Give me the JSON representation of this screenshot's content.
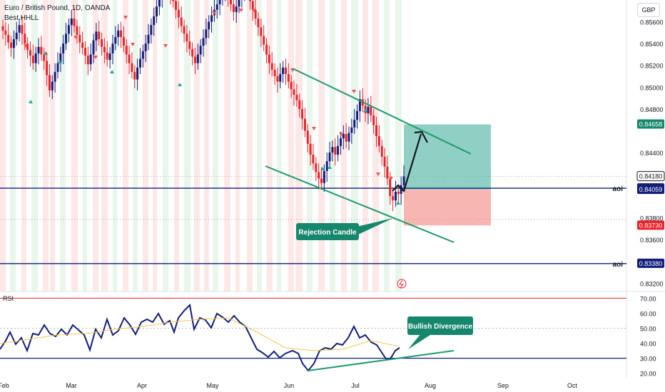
{
  "header": {
    "title": "Euro / British Pound, 1D, OANDA",
    "indicator": "Best HHLL",
    "currency_button": "GBP"
  },
  "rsi_panel": {
    "label": "RSI"
  },
  "annotations": {
    "aoi_label": "aoi",
    "rejection_callout": "Rejection Candle",
    "divergence_callout": "Bullish Divergence"
  },
  "colors": {
    "up": "#131d7a",
    "down": "#e8232b",
    "stop_zone": "#f7a9a6",
    "target_zone": "#7dc7ba",
    "channel": "#1f9c6b",
    "callout": "#16876c",
    "rsi_line": "#131d7a",
    "rsi_ma": "#f3c84b",
    "level_line": "#131d7a",
    "rsi_top": "#e8232b"
  },
  "chart_data": [
    {
      "type": "candlestick",
      "title": "Euro / British Pound, 1D, OANDA",
      "x_ticks": [
        "Feb",
        "Mar",
        "Apr",
        "May",
        "Jun",
        "Jul",
        "Aug",
        "Sep",
        "Oct"
      ],
      "y_ticks": [
        "0.85600",
        "0.85400",
        "0.85200",
        "0.85000",
        "0.84800",
        "0.84400",
        "0.83800",
        "0.83600",
        "0.83200"
      ],
      "ylim": [
        0.8315,
        0.858
      ],
      "price_labels": [
        {
          "value": "0.84658",
          "kind": "target"
        },
        {
          "value": "0.84180",
          "kind": "current"
        },
        {
          "value": "0.84072",
          "kind": "aoi"
        },
        {
          "value": "0.84059",
          "kind": "entry"
        },
        {
          "value": "0.83730",
          "kind": "stop"
        },
        {
          "value": "0.83380",
          "kind": "aoi"
        }
      ],
      "aoi_levels": [
        0.84072,
        0.8338
      ],
      "trade_zone": {
        "entry": 0.84059,
        "target": 0.84658,
        "stop": 0.8373
      },
      "close_series": [
        0.8552,
        0.8548,
        0.8541,
        0.8536,
        0.8544,
        0.855,
        0.8557,
        0.8549,
        0.854,
        0.8534,
        0.8529,
        0.8522,
        0.8531,
        0.8537,
        0.853,
        0.8524,
        0.8511,
        0.8497,
        0.8505,
        0.8514,
        0.8522,
        0.8531,
        0.854,
        0.8549,
        0.8557,
        0.8563,
        0.8556,
        0.8548,
        0.8541,
        0.8536,
        0.8529,
        0.8521,
        0.853,
        0.8543,
        0.8551,
        0.8544,
        0.8537,
        0.8532,
        0.8525,
        0.8531,
        0.854,
        0.8546,
        0.8552,
        0.8546,
        0.8538,
        0.853,
        0.8522,
        0.8514,
        0.8507,
        0.8518,
        0.8526,
        0.8533,
        0.854,
        0.8548,
        0.8557,
        0.8565,
        0.8574,
        0.8583,
        0.8588,
        0.8593,
        0.8592,
        0.8586,
        0.8579,
        0.8571,
        0.8564,
        0.8556,
        0.8549,
        0.8542,
        0.8535,
        0.8528,
        0.8522,
        0.853,
        0.8538,
        0.8545,
        0.8553,
        0.856,
        0.8566,
        0.8571,
        0.8576,
        0.8581,
        0.8587,
        0.859,
        0.8584,
        0.8576,
        0.8569,
        0.8574,
        0.8581,
        0.8589,
        0.8592,
        0.8586,
        0.8579,
        0.8571,
        0.8563,
        0.8555,
        0.8547,
        0.8539,
        0.853,
        0.8522,
        0.8516,
        0.851,
        0.8505,
        0.8512,
        0.8518,
        0.8512,
        0.8505,
        0.8498,
        0.8493,
        0.8488,
        0.848,
        0.8471,
        0.846,
        0.8448,
        0.8438,
        0.843,
        0.8422,
        0.8416,
        0.8412,
        0.8423,
        0.8432,
        0.844,
        0.8445,
        0.8438,
        0.8446,
        0.8453,
        0.8457,
        0.845,
        0.8458,
        0.8463,
        0.847,
        0.8478,
        0.8489,
        0.8483,
        0.8476,
        0.8482,
        0.8474,
        0.8465,
        0.8455,
        0.8446,
        0.8436,
        0.8427,
        0.8416,
        0.84,
        0.8396,
        0.8404,
        0.8402,
        0.841,
        0.8418
      ]
    },
    {
      "type": "line",
      "title": "RSI",
      "y_ticks": [
        "70.00",
        "60.00",
        "50.00",
        "40.00",
        "30.00",
        "20.00"
      ],
      "ylim": [
        17,
        73
      ],
      "levels": [
        70,
        50,
        30
      ]
    }
  ]
}
